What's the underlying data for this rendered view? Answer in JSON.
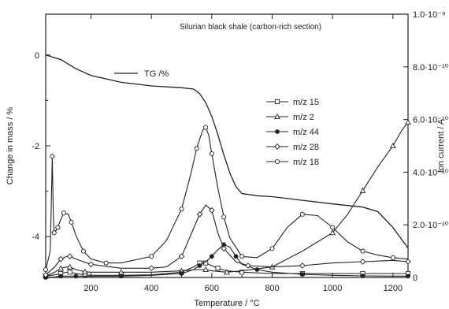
{
  "chart_data": {
    "type": "line",
    "title": "Silurian black shale (carbon-rich section)",
    "xlabel": "Temperature / °C",
    "ylabel_left": "Change in mass / %",
    "ylabel_right": "Ion current / A",
    "xlim": [
      50,
      1250
    ],
    "ylim_left": [
      -4.9,
      0.9
    ],
    "ylim_right": [
      0,
      1e-09
    ],
    "x_ticks": [
      200,
      400,
      600,
      800,
      1000,
      1200
    ],
    "y_left_ticks": [
      0,
      -2,
      -4
    ],
    "y_right_ticks": [
      {
        "value": 0,
        "label": "0"
      },
      {
        "value": 2e-10,
        "label": "2.0·10⁻¹⁰"
      },
      {
        "value": 4e-10,
        "label": "4.0·10⁻¹⁰"
      },
      {
        "value": 6e-10,
        "label": "6.0·10⁻¹⁰"
      },
      {
        "value": 8e-10,
        "label": "8.0·10⁻¹⁰"
      },
      {
        "value": 1e-09,
        "label": "1.0·10⁻⁹"
      }
    ],
    "tg_series": {
      "name": "TG /%",
      "axis": "left",
      "x": [
        50,
        100,
        150,
        200,
        300,
        400,
        500,
        540,
        560,
        580,
        600,
        620,
        640,
        660,
        680,
        700,
        750,
        800,
        900,
        1000,
        1100,
        1150,
        1200,
        1250
      ],
      "y": [
        0.0,
        -0.1,
        -0.3,
        -0.45,
        -0.6,
        -0.68,
        -0.72,
        -0.75,
        -0.85,
        -1.05,
        -1.35,
        -1.75,
        -2.2,
        -2.6,
        -2.9,
        -3.05,
        -3.1,
        -3.12,
        -3.2,
        -3.28,
        -3.35,
        -3.45,
        -3.8,
        -4.25
      ]
    },
    "ms_series": [
      {
        "name": "m/z 15",
        "marker": "square",
        "x": [
          50,
          80,
          100,
          120,
          130,
          150,
          180,
          200,
          300,
          400,
          500,
          540,
          560,
          570,
          580,
          600,
          620,
          650,
          700,
          800,
          900,
          1000,
          1100,
          1200,
          1250
        ],
        "y": [
          5e-12,
          1e-11,
          1.5e-11,
          2e-11,
          2e-11,
          1.5e-11,
          1e-11,
          8e-12,
          8e-12,
          1e-11,
          2e-11,
          4e-11,
          5.5e-11,
          6e-11,
          5.5e-11,
          4.5e-11,
          3.5e-11,
          2.5e-11,
          2e-11,
          1.5e-11,
          1.5e-11,
          1.5e-11,
          1.5e-11,
          1.5e-11,
          1.5e-11
        ]
      },
      {
        "name": "m/z 2",
        "marker": "triangle",
        "x": [
          50,
          80,
          100,
          120,
          130,
          150,
          180,
          200,
          300,
          400,
          500,
          550,
          580,
          600,
          650,
          700,
          800,
          900,
          1000,
          1050,
          1100,
          1150,
          1200,
          1230,
          1250
        ],
        "y": [
          5e-12,
          2e-11,
          3.5e-11,
          4e-11,
          4e-11,
          3e-11,
          2.2e-11,
          2e-11,
          2e-11,
          2e-11,
          2.5e-11,
          3e-11,
          3e-11,
          2.5e-11,
          2e-11,
          2.5e-11,
          4e-11,
          1e-10,
          1.7e-10,
          2.4e-10,
          3.3e-10,
          4.2e-10,
          5e-10,
          5.6e-10,
          5.9e-10
        ]
      },
      {
        "name": "m/z 44",
        "marker": "star",
        "x": [
          50,
          80,
          100,
          120,
          150,
          200,
          300,
          400,
          500,
          540,
          560,
          580,
          600,
          620,
          640,
          660,
          680,
          700,
          750,
          800,
          900,
          1000,
          1100,
          1200,
          1250
        ],
        "y": [
          0.0,
          2e-12,
          5e-12,
          5e-12,
          5e-12,
          5e-12,
          5e-12,
          8e-12,
          1.5e-11,
          3e-11,
          4.5e-11,
          6e-11,
          8e-11,
          1.05e-10,
          1.25e-10,
          1.15e-10,
          8e-11,
          5e-11,
          3e-11,
          2e-11,
          1.2e-11,
          8e-12,
          6e-12,
          5e-12,
          5e-12
        ]
      },
      {
        "name": "m/z 28",
        "marker": "diamond",
        "x": [
          50,
          80,
          100,
          120,
          130,
          150,
          200,
          300,
          400,
          450,
          500,
          530,
          560,
          580,
          600,
          620,
          640,
          680,
          720,
          800,
          900,
          1000,
          1100,
          1200,
          1250
        ],
        "y": [
          1e-11,
          4e-11,
          7e-11,
          8e-11,
          8e-11,
          7e-11,
          5e-11,
          3.5e-11,
          3.5e-11,
          4e-11,
          8e-11,
          1.6e-10,
          2.4e-10,
          2.75e-10,
          2.55e-10,
          1.7e-10,
          1.1e-10,
          6e-11,
          4.5e-11,
          4e-11,
          4.5e-11,
          5.5e-11,
          6e-11,
          6.5e-11,
          6e-11
        ]
      },
      {
        "name": "m/z 18",
        "marker": "circle",
        "x": [
          50,
          65,
          72,
          75,
          78,
          85,
          90,
          100,
          110,
          125,
          135,
          150,
          175,
          200,
          250,
          300,
          400,
          450,
          500,
          530,
          550,
          570,
          580,
          590,
          600,
          620,
          640,
          660,
          700,
          750,
          800,
          850,
          900,
          950,
          1000,
          1050,
          1100,
          1150,
          1200,
          1250
        ],
        "y": [
          3e-11,
          1e-10,
          4.6e-10,
          2.5e-10,
          1.7e-10,
          1.8e-10,
          1.9e-10,
          2.2e-10,
          2.45e-10,
          2.4e-10,
          2.1e-10,
          1.6e-10,
          1e-10,
          7e-11,
          5.5e-11,
          5.5e-11,
          8e-11,
          1.4e-10,
          2.6e-10,
          3.9e-10,
          4.9e-10,
          5.6e-10,
          5.7e-10,
          5.4e-10,
          4.7e-10,
          3.4e-10,
          2.3e-10,
          1.5e-10,
          8e-11,
          7.5e-11,
          1.1e-10,
          1.9e-10,
          2.4e-10,
          2.35e-10,
          1.9e-10,
          1.35e-10,
          1e-10,
          8.5e-11,
          7.5e-11,
          7e-11
        ]
      }
    ]
  }
}
